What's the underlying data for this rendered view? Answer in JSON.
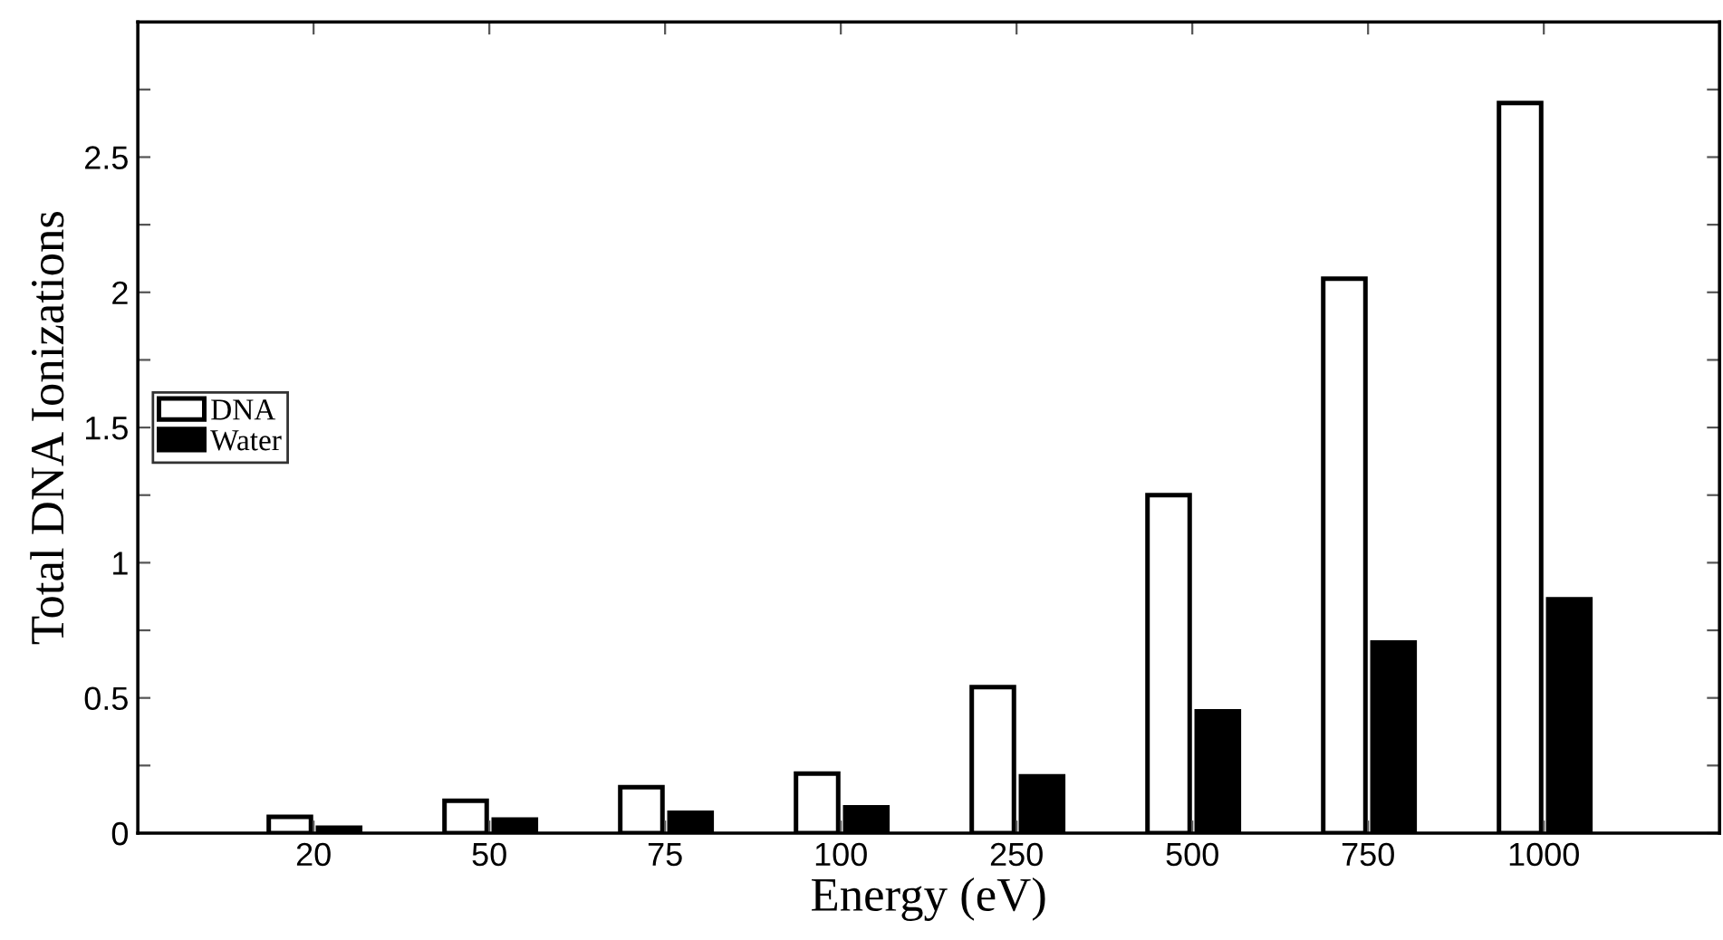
{
  "chart_data": {
    "type": "bar",
    "xlabel": "Energy (eV)",
    "ylabel": "Total DNA Ionizations",
    "categories": [
      "20",
      "50",
      "75",
      "100",
      "250",
      "500",
      "750",
      "1000"
    ],
    "series": [
      {
        "name": "DNA",
        "color": "#ffffff",
        "values": [
          0.06,
          0.12,
          0.17,
          0.22,
          0.54,
          1.25,
          2.05,
          2.7
        ]
      },
      {
        "name": "Water",
        "color": "#000000",
        "values": [
          0.02,
          0.05,
          0.075,
          0.095,
          0.21,
          0.45,
          0.705,
          0.865
        ]
      }
    ],
    "ylim": [
      0,
      3
    ],
    "yticks": [
      0,
      {
        "value": 0.25,
        "label": null
      },
      0.5,
      {
        "value": 0.75,
        "label": null
      },
      1,
      {
        "value": 1.25,
        "label": null
      },
      1.5,
      {
        "value": 1.75,
        "label": null
      },
      2,
      {
        "value": 2.25,
        "label": null
      },
      2.5,
      {
        "value": 2.75,
        "label": null
      }
    ],
    "legend": "left",
    "grid": false
  }
}
